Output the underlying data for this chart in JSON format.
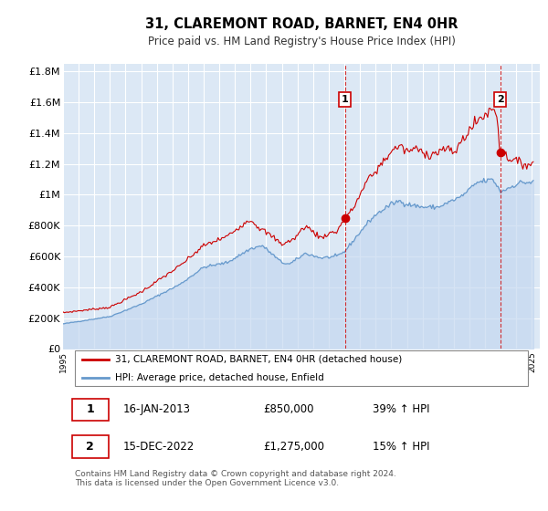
{
  "title": "31, CLAREMONT ROAD, BARNET, EN4 0HR",
  "subtitle": "Price paid vs. HM Land Registry's House Price Index (HPI)",
  "plot_bg_color": "#dce8f5",
  "grid_color": "#ffffff",
  "ylim": [
    0,
    1850000
  ],
  "yticks": [
    0,
    200000,
    400000,
    600000,
    800000,
    1000000,
    1200000,
    1400000,
    1600000,
    1800000
  ],
  "ytick_labels": [
    "£0",
    "£200K",
    "£400K",
    "£600K",
    "£800K",
    "£1M",
    "£1.2M",
    "£1.4M",
    "£1.6M",
    "£1.8M"
  ],
  "xlim_start": 1995.0,
  "xlim_end": 2025.5,
  "xtick_years": [
    1995,
    1996,
    1997,
    1998,
    1999,
    2000,
    2001,
    2002,
    2003,
    2004,
    2005,
    2006,
    2007,
    2008,
    2009,
    2010,
    2011,
    2012,
    2013,
    2014,
    2015,
    2016,
    2017,
    2018,
    2019,
    2020,
    2021,
    2022,
    2023,
    2024,
    2025
  ],
  "red_line_color": "#cc0000",
  "blue_line_color": "#6699cc",
  "blue_fill_color": "#c5d8f0",
  "sale1_x": 2013.04,
  "sale1_y": 850000,
  "sale2_x": 2022.96,
  "sale2_y": 1275000,
  "legend_line1": "31, CLAREMONT ROAD, BARNET, EN4 0HR (detached house)",
  "legend_line2": "HPI: Average price, detached house, Enfield",
  "table_row1": [
    "1",
    "16-JAN-2013",
    "£850,000",
    "39% ↑ HPI"
  ],
  "table_row2": [
    "2",
    "15-DEC-2022",
    "£1,275,000",
    "15% ↑ HPI"
  ],
  "footer": "Contains HM Land Registry data © Crown copyright and database right 2024.\nThis data is licensed under the Open Government Licence v3.0."
}
